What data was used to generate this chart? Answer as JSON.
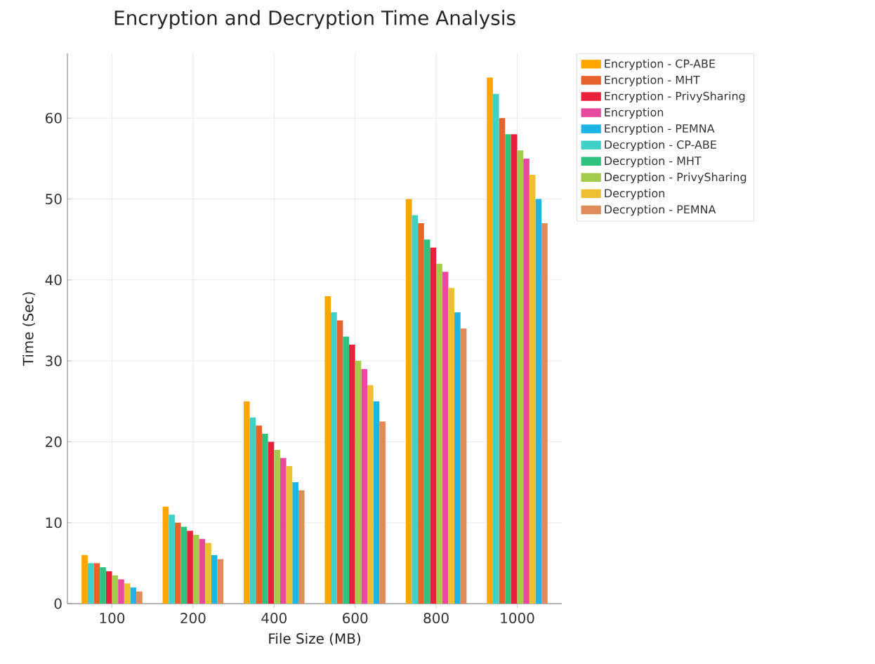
{
  "chart_data": {
    "type": "bar",
    "title": "Encryption and Decryption Time Analysis",
    "xlabel": "File Size (MB)",
    "ylabel": "Time (Sec)",
    "categories": [
      "100",
      "200",
      "400",
      "600",
      "800",
      "1000"
    ],
    "series": [
      {
        "name": "Encryption - CP-ABE",
        "color": "#ffa500",
        "values": [
          6,
          12,
          25,
          38,
          50,
          65
        ]
      },
      {
        "name": "Encryption - MHT",
        "color": "#e8632b",
        "values": [
          5,
          10,
          22,
          35,
          47,
          60
        ]
      },
      {
        "name": "Encryption - PrivySharing",
        "color": "#e8203c",
        "values": [
          4,
          9,
          20,
          32,
          44,
          58
        ]
      },
      {
        "name": "Encryption",
        "color": "#e8489e",
        "values": [
          3,
          8,
          18,
          29,
          41,
          55
        ]
      },
      {
        "name": "Encryption - PEMNA",
        "color": "#1eb4e6",
        "values": [
          2,
          6,
          15,
          25,
          36,
          50
        ]
      },
      {
        "name": "Decryption - CP-ABE",
        "color": "#40d0c8",
        "values": [
          5,
          11,
          23,
          36,
          48,
          63
        ]
      },
      {
        "name": "Decryption - MHT",
        "color": "#2ec27e",
        "values": [
          4.5,
          9.5,
          21,
          33,
          45,
          58
        ]
      },
      {
        "name": "Decryption - PrivySharing",
        "color": "#a4cc4c",
        "values": [
          3.5,
          8.5,
          19,
          30,
          42,
          56
        ]
      },
      {
        "name": "Decryption",
        "color": "#ecc030",
        "values": [
          2.5,
          7.5,
          17,
          27,
          39,
          53
        ]
      },
      {
        "name": "Decryption - PEMNA",
        "color": "#e08c5a",
        "values": [
          1.5,
          5.5,
          14,
          22.5,
          34,
          47
        ]
      }
    ],
    "ylim": [
      0,
      68
    ],
    "yticks": [
      0,
      10,
      20,
      30,
      40,
      50,
      60
    ],
    "grid": true,
    "legend": "right"
  }
}
